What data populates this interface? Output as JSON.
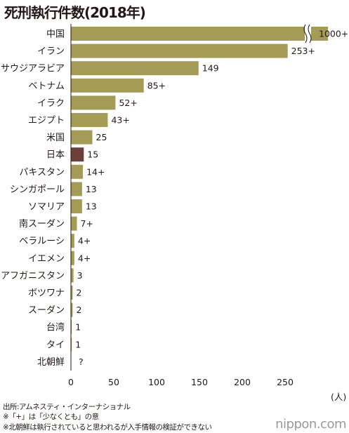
{
  "chart_data": {
    "type": "bar",
    "orientation": "horizontal",
    "title": "死刑執行件数(2018年)",
    "unit_label": "(人)",
    "categories": [
      "中国",
      "イラン",
      "サウジアラビア",
      "ベトナム",
      "イラク",
      "エジプト",
      "米国",
      "日本",
      "パキスタン",
      "シンガポール",
      "ソマリア",
      "南スーダン",
      "ベラルーシ",
      "イエメン",
      "アフガニスタン",
      "ボツワナ",
      "スーダン",
      "台湾",
      "タイ",
      "北朝鮮"
    ],
    "values": [
      1000,
      253,
      149,
      85,
      52,
      43,
      25,
      15,
      14,
      13,
      13,
      7,
      4,
      4,
      3,
      2,
      2,
      1,
      1,
      null
    ],
    "value_labels": [
      "1000+",
      "253+",
      "149",
      "85+",
      "52+",
      "43+",
      "25",
      "15",
      "14+",
      "13",
      "13",
      "7+",
      "4+",
      "4+",
      "3",
      "2",
      "2",
      "1",
      "1",
      "?"
    ],
    "highlight_category": "日本",
    "xlim": [
      0,
      300
    ],
    "xticks": [
      0,
      50,
      100,
      150,
      200,
      250
    ],
    "axis_break": {
      "category": "中国"
    },
    "grid": false,
    "legend": "none",
    "colors": {
      "bar": "#a39b56",
      "highlight": "#6b4039"
    }
  },
  "notes": [
    "出所:アムネスティ・インターナショナル",
    "※「+」は「少なくとも」の意",
    "※北朝鮮は執行されていると思われるが入手情報の検証ができない"
  ],
  "logo": "nippon.com"
}
